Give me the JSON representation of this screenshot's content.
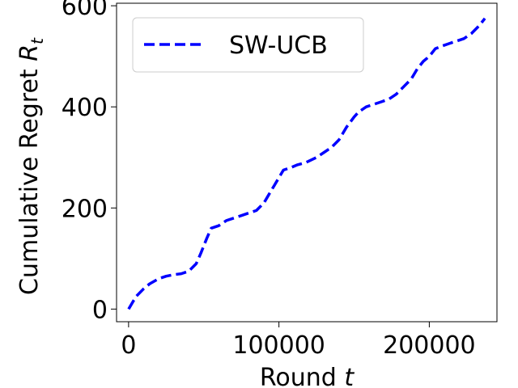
{
  "chart_data": {
    "type": "line",
    "xlabel": "Round",
    "xlabel_var": "t",
    "ylabel": "Cumulative Regret",
    "ylabel_var": "R",
    "ylabel_sub": "t",
    "xlim": [
      -8000,
      245000
    ],
    "ylim": [
      -25,
      605
    ],
    "xticks": [
      {
        "value": 0,
        "label": "0"
      },
      {
        "value": 100000,
        "label": "100000"
      },
      {
        "value": 200000,
        "label": "200000"
      }
    ],
    "yticks": [
      {
        "value": 0,
        "label": "0"
      },
      {
        "value": 200,
        "label": "200"
      },
      {
        "value": 400,
        "label": "400"
      },
      {
        "value": 600,
        "label": "600"
      }
    ],
    "grid": false,
    "legend": {
      "position": "top-left"
    },
    "series": [
      {
        "name": "SW-UCB",
        "color": "#0000ff",
        "style": "dashed",
        "x": [
          0,
          3000,
          5000,
          10000,
          14000,
          20000,
          25000,
          30000,
          35000,
          40000,
          45000,
          48000,
          52000,
          55000,
          60000,
          65000,
          70000,
          75000,
          80000,
          85000,
          90000,
          93000,
          97000,
          100000,
          103000,
          108000,
          112000,
          118000,
          125000,
          130000,
          135000,
          140000,
          145000,
          150000,
          153000,
          158000,
          163000,
          168000,
          173000,
          178000,
          183000,
          188000,
          192000,
          196000,
          200000,
          204000,
          208000,
          213000,
          218000,
          223000,
          228000,
          233000,
          237000
        ],
        "y": [
          0,
          15,
          25,
          40,
          50,
          60,
          65,
          68,
          70,
          75,
          90,
          110,
          140,
          160,
          165,
          175,
          180,
          185,
          190,
          195,
          210,
          225,
          245,
          260,
          275,
          280,
          285,
          290,
          300,
          310,
          320,
          335,
          360,
          380,
          390,
          400,
          405,
          410,
          415,
          425,
          440,
          455,
          475,
          490,
          500,
          515,
          520,
          525,
          530,
          535,
          545,
          560,
          575
        ]
      }
    ]
  }
}
